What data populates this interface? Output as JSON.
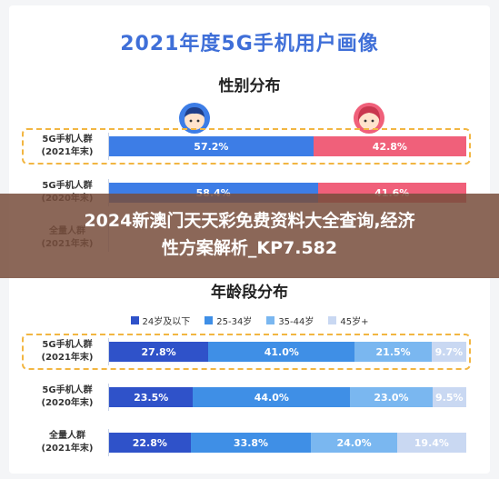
{
  "title": "2021年度5G手机用户画像",
  "overlay": {
    "line1": "2024新澳门天天彩免费资料大全查询,经济",
    "line2": "性方案解析_KP7.582"
  },
  "colors": {
    "male": "#3d7de6",
    "female": "#f0607a",
    "age_18_24": "#2f52c9",
    "age_25_34": "#3f8fe6",
    "age_35_44": "#7ab7f0",
    "age_45_plus": "#c9d8f2",
    "title": "#3f6fd8",
    "highlight": "#f2b642"
  },
  "chart_data": [
    {
      "type": "bar",
      "stacked": true,
      "orientation": "horizontal",
      "title": "性别分布",
      "categories": [
        "5G手机人群\n(2021年末)",
        "5G手机人群\n(2020年末)",
        "全量人群\n(2021年末)"
      ],
      "series": [
        {
          "values": [
            57.2,
            58.4,
            null
          ],
          "labels": [
            "57.2%",
            "58.4%",
            ""
          ],
          "icon": "male-avatar-icon"
        },
        {
          "values": [
            42.8,
            41.6,
            null
          ],
          "labels": [
            "42.8%",
            "41.6%",
            ""
          ],
          "icon": "female-avatar-icon"
        }
      ],
      "xlim": [
        0,
        100
      ],
      "highlighted_row": 0
    },
    {
      "type": "bar",
      "stacked": true,
      "orientation": "horizontal",
      "title": "年龄段分布",
      "legend_position": "top",
      "categories": [
        "5G手机人群\n(2021年末)",
        "5G手机人群\n(2020年末)",
        "全量人群\n(2021年末)"
      ],
      "series": [
        {
          "name": "24岁及以下",
          "values": [
            27.8,
            23.5,
            22.8
          ],
          "labels": [
            "27.8%",
            "23.5%",
            "22.8%"
          ]
        },
        {
          "name": "25-34岁",
          "values": [
            41.0,
            44.0,
            33.8
          ],
          "labels": [
            "41.0%",
            "44.0%",
            "33.8%"
          ]
        },
        {
          "name": "35-44岁",
          "values": [
            21.5,
            23.0,
            24.0
          ],
          "labels": [
            "21.5%",
            "23.0%",
            "24.0%"
          ]
        },
        {
          "name": "45岁+",
          "values": [
            9.7,
            9.5,
            19.4
          ],
          "labels": [
            "9.7%",
            "9.5%",
            "19.4%"
          ]
        }
      ],
      "xlim": [
        0,
        100
      ],
      "highlighted_row": 0
    }
  ]
}
